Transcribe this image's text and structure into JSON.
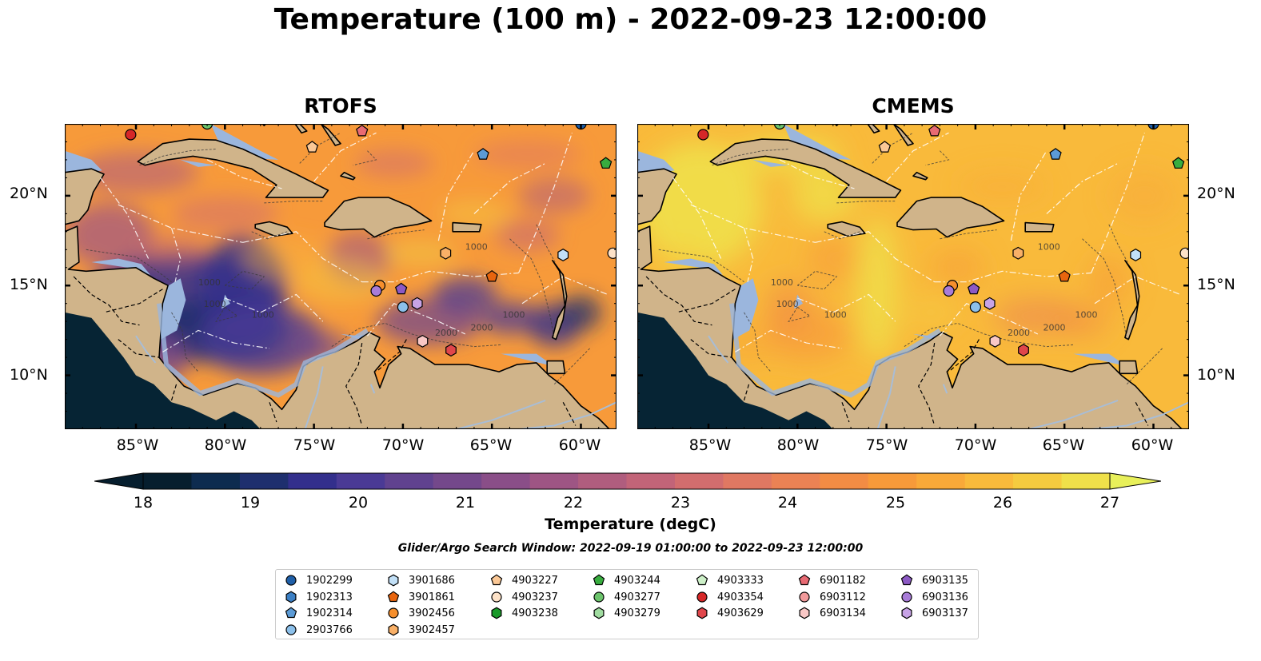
{
  "title": "Temperature (100 m) - 2022-09-23 12:00:00",
  "panels": [
    {
      "title": "RTOFS",
      "palette": "rtofs"
    },
    {
      "title": "CMEMS",
      "palette": "cmems"
    }
  ],
  "lon_ticks": [
    "85°W",
    "80°W",
    "75°W",
    "70°W",
    "65°W",
    "60°W"
  ],
  "lat_ticks": [
    "20°N",
    "15°N",
    "10°N"
  ],
  "colorbar": {
    "label": "Temperature (degC)",
    "min": 18,
    "max": 27,
    "ticks": [
      "18",
      "19",
      "20",
      "21",
      "22",
      "23",
      "24",
      "25",
      "26",
      "27"
    ],
    "colors": [
      "#061e2e",
      "#0d2b4f",
      "#1e2f6e",
      "#332f8c",
      "#4a3a95",
      "#60428f",
      "#74488b",
      "#8a4e88",
      "#9e5584",
      "#b05d7e",
      "#c26478",
      "#d26d6e",
      "#e07862",
      "#eb8254",
      "#f28c44",
      "#f79a3a",
      "#f9a939",
      "#f9ba3b",
      "#f5cb3f",
      "#efe04a"
    ],
    "extend": "both"
  },
  "contour_labels": [
    "1000",
    "1000",
    "1000",
    "2000",
    "1000",
    "2000",
    "1000"
  ],
  "search_window": "Glider/Argo Search Window: 2022-09-19 01:00:00 to 2022-09-23 12:00:00",
  "map_extent": {
    "lon": [
      -89,
      -58
    ],
    "lat": [
      7,
      24
    ]
  },
  "platforms": [
    {
      "id": "1902299",
      "marker": "circle",
      "color": "#1f5fa8",
      "lon": -60,
      "lat": 24
    },
    {
      "id": "1902313",
      "marker": "hexagon",
      "color": "#3b7fc4",
      "lon": null,
      "lat": null
    },
    {
      "id": "1902314",
      "marker": "pentagon",
      "color": "#5c9bd6",
      "lon": -65.5,
      "lat": 22.3
    },
    {
      "id": "2903766",
      "marker": "circle",
      "color": "#8cc0ea",
      "lon": -70,
      "lat": 13.8
    },
    {
      "id": "3901686",
      "marker": "hexagon",
      "color": "#c2e0f7",
      "lon": -61,
      "lat": 16.7
    },
    {
      "id": "3901861",
      "marker": "pentagon",
      "color": "#e8650e",
      "lon": -65,
      "lat": 15.5
    },
    {
      "id": "3902456",
      "marker": "circle",
      "color": "#f68f2d",
      "lon": -71.3,
      "lat": 15
    },
    {
      "id": "3902457",
      "marker": "hexagon",
      "color": "#f9b067",
      "lon": -67.6,
      "lat": 16.8
    },
    {
      "id": "4903227",
      "marker": "pentagon",
      "color": "#fbc896",
      "lon": -75.1,
      "lat": 22.7
    },
    {
      "id": "4903237",
      "marker": "circle",
      "color": "#fde2c8",
      "lon": -58.2,
      "lat": 16.8
    },
    {
      "id": "4903238",
      "marker": "hexagon",
      "color": "#1a9a2a",
      "lon": null,
      "lat": null
    },
    {
      "id": "4903244",
      "marker": "pentagon",
      "color": "#38ad3f",
      "lon": -58.6,
      "lat": 21.8
    },
    {
      "id": "4903277",
      "marker": "circle",
      "color": "#6cc46c",
      "lon": -81,
      "lat": 24
    },
    {
      "id": "4903279",
      "marker": "hexagon",
      "color": "#a0dca0",
      "lon": null,
      "lat": null
    },
    {
      "id": "4903333",
      "marker": "pentagon",
      "color": "#cdf0c8",
      "lon": null,
      "lat": null
    },
    {
      "id": "4903354",
      "marker": "circle",
      "color": "#d62728",
      "lon": -85.3,
      "lat": 23.4
    },
    {
      "id": "4903629",
      "marker": "hexagon",
      "color": "#e0464b",
      "lon": null,
      "lat": null
    },
    {
      "id": "6901182",
      "marker": "pentagon",
      "color": "#e86a73",
      "lon": -72.3,
      "lat": 23.6
    },
    {
      "id": "6903112",
      "marker": "circle",
      "color": "#f19a9b",
      "lon": null,
      "lat": null
    },
    {
      "id": "6903134",
      "marker": "hexagon",
      "color": "#f9c8c6",
      "lon": -68.9,
      "lat": 11.9
    },
    {
      "id": "6903135",
      "marker": "pentagon",
      "color": "#8c59c4",
      "lon": -70.1,
      "lat": 14.8
    },
    {
      "id": "6903136",
      "marker": "circle",
      "color": "#a87cd8",
      "lon": -71.5,
      "lat": 14.7
    },
    {
      "id": "6903137",
      "marker": "hexagon",
      "color": "#c7a3e6",
      "lon": -69.2,
      "lat": 14
    }
  ],
  "extra_marker": {
    "marker": "hexagon",
    "color": "#e0464b",
    "lon": -67.3,
    "lat": 11.4
  }
}
